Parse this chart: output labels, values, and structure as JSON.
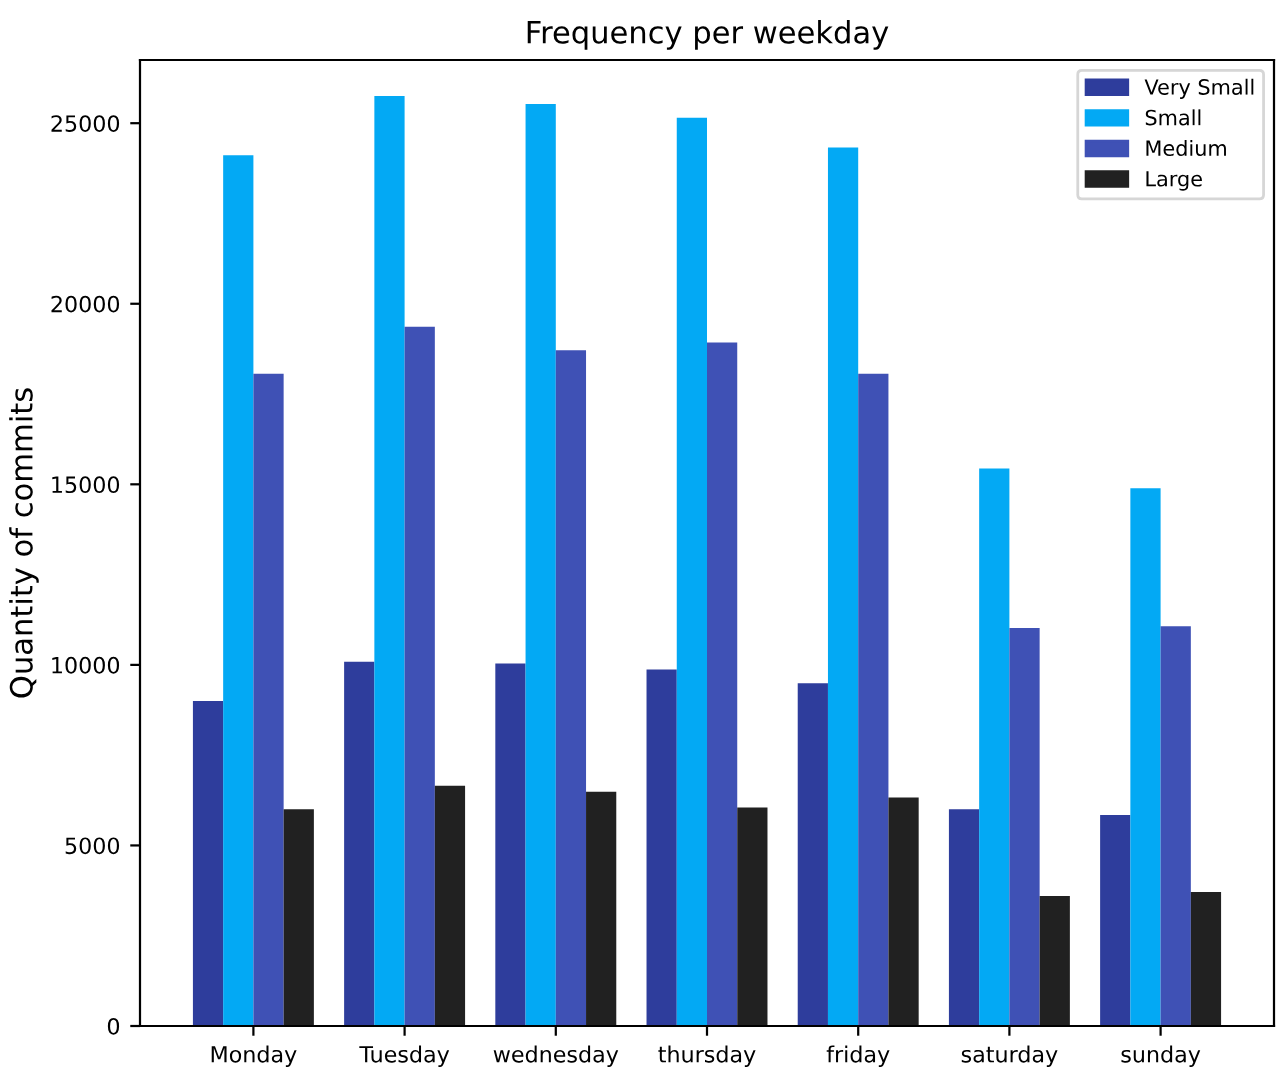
{
  "chart_data": {
    "type": "bar",
    "title": "Frequency per weekday",
    "ylabel": "Quantity of commits",
    "categories": [
      "Monday",
      "Tuesday",
      "wednesday",
      "thursday",
      "friday",
      "saturday",
      "sunday"
    ],
    "series": [
      {
        "name": "Very Small",
        "color": "#2e3d9c",
        "values": [
          9000,
          10090,
          10040,
          9870,
          9490,
          6000,
          5840
        ]
      },
      {
        "name": "Small",
        "color": "#03a9f4",
        "values": [
          24110,
          25750,
          25530,
          25150,
          24330,
          15440,
          14890
        ]
      },
      {
        "name": "Medium",
        "color": "#3f51b5",
        "values": [
          18060,
          19360,
          18710,
          18930,
          18060,
          11020,
          11070
        ]
      },
      {
        "name": "Large",
        "color": "#212121",
        "values": [
          6000,
          6650,
          6490,
          6050,
          6330,
          3600,
          3710
        ]
      }
    ],
    "ylim": [
      0,
      26750
    ],
    "yticks": [
      0,
      5000,
      10000,
      15000,
      20000,
      25000
    ],
    "grid": false,
    "legend": "top right"
  }
}
